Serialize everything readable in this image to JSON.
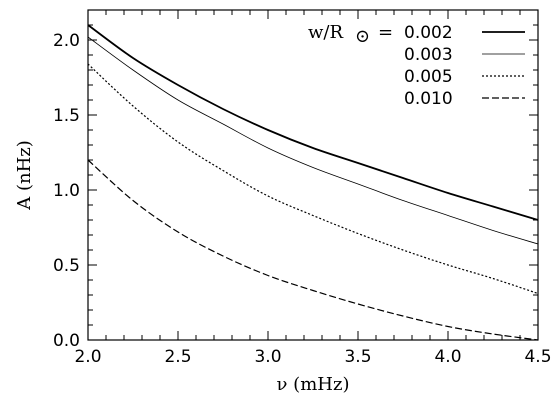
{
  "chart_data": {
    "type": "line",
    "title": "",
    "xlabel": "ν (mHz)",
    "ylabel": "A (nHz)",
    "xlim": [
      2.0,
      4.5
    ],
    "ylim": [
      0.0,
      2.2
    ],
    "xticks": [
      "2.0",
      "2.5",
      "3.0",
      "3.5",
      "4.0",
      "4.5"
    ],
    "yticks": [
      "0.0",
      "0.5",
      "1.0",
      "1.5",
      "2.0"
    ],
    "legend": {
      "title_main": "w/R",
      "title_sub": "⊙",
      "title_eq": "=",
      "placement": "top-right"
    },
    "x": [
      2.0,
      2.25,
      2.5,
      2.75,
      3.0,
      3.25,
      3.5,
      3.75,
      4.0,
      4.25,
      4.5
    ],
    "series": [
      {
        "name": "0.002",
        "style": "solid",
        "width": 1.8,
        "values": [
          2.1,
          1.88,
          1.7,
          1.54,
          1.4,
          1.28,
          1.18,
          1.08,
          0.98,
          0.89,
          0.8
        ]
      },
      {
        "name": "0.003",
        "style": "thin",
        "width": 0.8,
        "values": [
          2.02,
          1.8,
          1.6,
          1.44,
          1.28,
          1.15,
          1.04,
          0.93,
          0.83,
          0.73,
          0.64
        ]
      },
      {
        "name": "0.005",
        "style": "dotted",
        "width": 1.2,
        "values": [
          1.84,
          1.56,
          1.32,
          1.13,
          0.96,
          0.83,
          0.71,
          0.6,
          0.5,
          0.41,
          0.31
        ]
      },
      {
        "name": "0.010",
        "style": "dashed",
        "width": 1.2,
        "values": [
          1.2,
          0.93,
          0.72,
          0.56,
          0.43,
          0.33,
          0.24,
          0.16,
          0.09,
          0.04,
          0.0
        ]
      }
    ]
  }
}
